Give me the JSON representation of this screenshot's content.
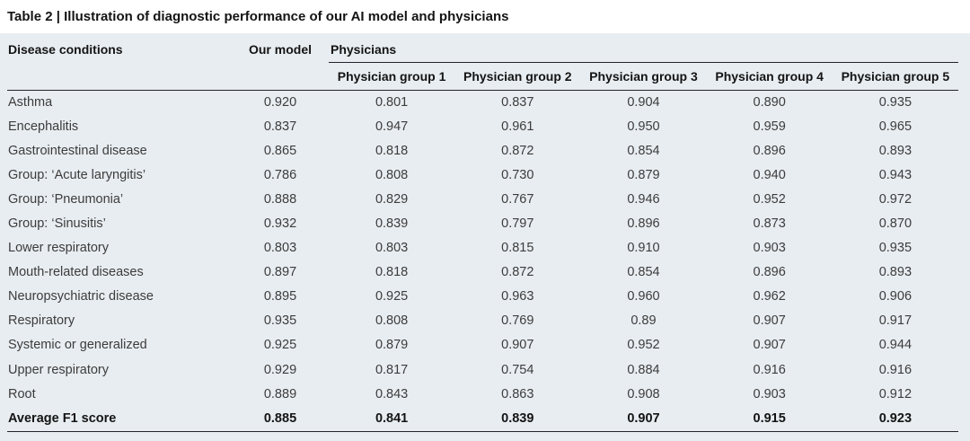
{
  "title": "Table 2 | Illustration of diagnostic performance of our AI model and physicians",
  "table": {
    "col1_header": "Disease conditions",
    "col2_header": "Our model",
    "group_header": "Physicians",
    "subheaders": [
      "Physician group 1",
      "Physician group 2",
      "Physician group 3",
      "Physician group 4",
      "Physician group 5"
    ]
  },
  "chart_data": {
    "type": "table",
    "title": "Table 2 | Illustration of diagnostic performance of our AI model and physicians",
    "columns": [
      "Disease conditions",
      "Our model",
      "Physician group 1",
      "Physician group 2",
      "Physician group 3",
      "Physician group 4",
      "Physician group 5"
    ],
    "rows": [
      [
        "Asthma",
        "0.920",
        "0.801",
        "0.837",
        "0.904",
        "0.890",
        "0.935"
      ],
      [
        "Encephalitis",
        "0.837",
        "0.947",
        "0.961",
        "0.950",
        "0.959",
        "0.965"
      ],
      [
        "Gastrointestinal disease",
        "0.865",
        "0.818",
        "0.872",
        "0.854",
        "0.896",
        "0.893"
      ],
      [
        "Group: ‘Acute laryngitis’",
        "0.786",
        "0.808",
        "0.730",
        "0.879",
        "0.940",
        "0.943"
      ],
      [
        "Group: ‘Pneumonia’",
        "0.888",
        "0.829",
        "0.767",
        "0.946",
        "0.952",
        "0.972"
      ],
      [
        "Group: ‘Sinusitis’",
        "0.932",
        "0.839",
        "0.797",
        "0.896",
        "0.873",
        "0.870"
      ],
      [
        "Lower respiratory",
        "0.803",
        "0.803",
        "0.815",
        "0.910",
        "0.903",
        "0.935"
      ],
      [
        "Mouth-related diseases",
        "0.897",
        "0.818",
        "0.872",
        "0.854",
        "0.896",
        "0.893"
      ],
      [
        "Neuropsychiatric disease",
        "0.895",
        "0.925",
        "0.963",
        "0.960",
        "0.962",
        "0.906"
      ],
      [
        "Respiratory",
        "0.935",
        "0.808",
        "0.769",
        "0.89",
        "0.907",
        "0.917"
      ],
      [
        "Systemic or generalized",
        "0.925",
        "0.879",
        "0.907",
        "0.952",
        "0.907",
        "0.944"
      ],
      [
        "Upper respiratory",
        "0.929",
        "0.817",
        "0.754",
        "0.884",
        "0.916",
        "0.916"
      ],
      [
        "Root",
        "0.889",
        "0.843",
        "0.863",
        "0.908",
        "0.903",
        "0.912"
      ]
    ],
    "footer_row": [
      "Average F1 score",
      "0.885",
      "0.841",
      "0.839",
      "0.907",
      "0.915",
      "0.923"
    ]
  },
  "colors": {
    "table_background": "#e8edf1",
    "rule": "#23232d",
    "body_text": "#3c3c3c",
    "header_text": "#141414"
  }
}
